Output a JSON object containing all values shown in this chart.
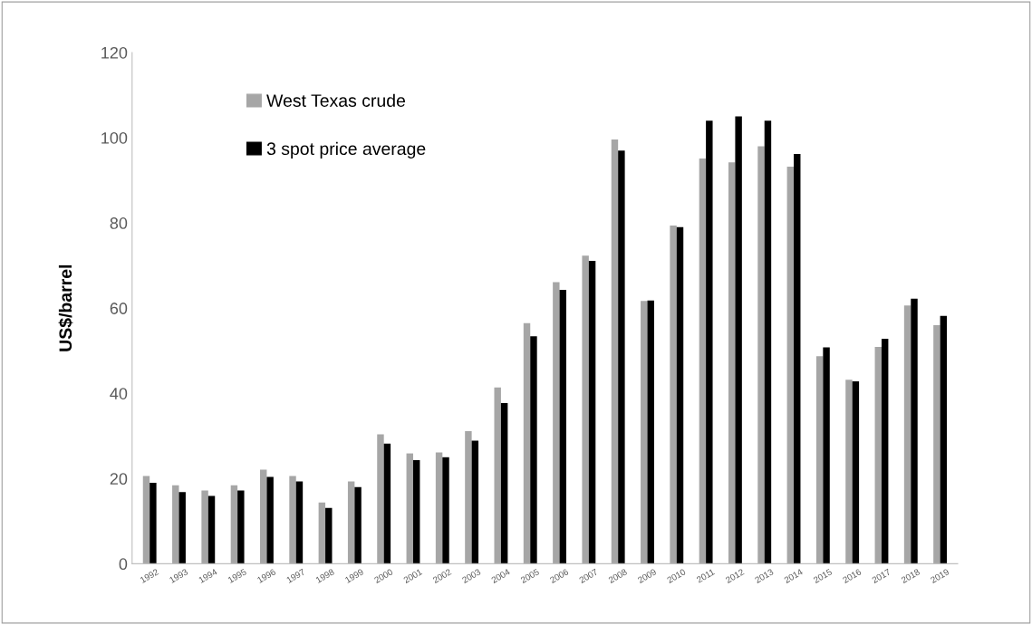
{
  "chart_data": {
    "type": "bar",
    "ylabel": "US$/barrel",
    "categories": [
      "1992",
      "1993",
      "1994",
      "1995",
      "1996",
      "1997",
      "1998",
      "1999",
      "2000",
      "2001",
      "2002",
      "2003",
      "2004",
      "2005",
      "2006",
      "2007",
      "2008",
      "2009",
      "2010",
      "2011",
      "2012",
      "2013",
      "2014",
      "2015",
      "2016",
      "2017",
      "2018",
      "2019"
    ],
    "series": [
      {
        "name": "West Texas crude",
        "color": "#a6a6a6",
        "values": [
          20.6,
          18.4,
          17.2,
          18.4,
          22.1,
          20.6,
          14.4,
          19.3,
          30.4,
          25.9,
          26.1,
          31.1,
          41.4,
          56.5,
          66.1,
          72.3,
          99.6,
          61.7,
          79.4,
          95.1,
          94.2,
          98.0,
          93.2,
          48.7,
          43.2,
          50.9,
          60.6,
          56.0
        ]
      },
      {
        "name": "3 spot price average",
        "color": "#000000",
        "values": [
          19.0,
          16.8,
          15.9,
          17.2,
          20.4,
          19.3,
          13.1,
          18.0,
          28.2,
          24.3,
          25.0,
          28.9,
          37.7,
          53.4,
          64.3,
          71.1,
          97.0,
          61.8,
          79.0,
          104.0,
          105.0,
          104.0,
          96.2,
          50.8,
          42.8,
          52.8,
          62.2,
          58.2
        ]
      }
    ],
    "ylim": [
      0,
      120
    ],
    "yticks": [
      0,
      20,
      40,
      60,
      80,
      100,
      120
    ],
    "grid": false,
    "legend": "top left"
  }
}
